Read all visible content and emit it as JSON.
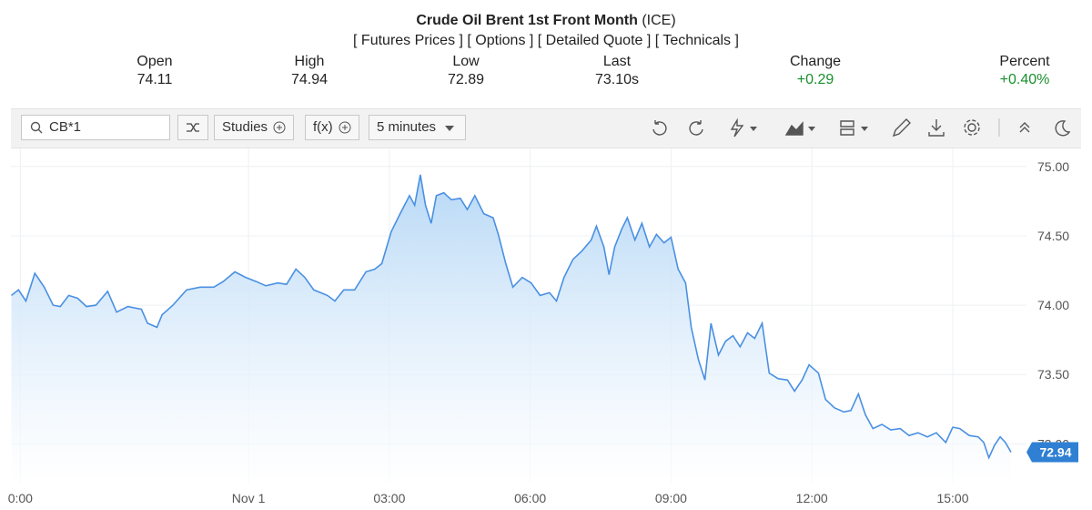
{
  "header": {
    "title": "Crude Oil Brent 1st Front Month",
    "exchange": "(ICE)",
    "links": [
      "[ Futures Prices ]",
      "[ Options ]",
      "[ Detailed Quote ]",
      "[ Technicals ]"
    ],
    "stats": [
      {
        "label": "Open",
        "value": "74.11"
      },
      {
        "label": "High",
        "value": "74.94"
      },
      {
        "label": "Low",
        "value": "72.89"
      },
      {
        "label": "Last",
        "value": "73.10s"
      },
      {
        "label": "Change",
        "value": "+0.29"
      },
      {
        "label": "Percent",
        "value": "+0.40%"
      }
    ]
  },
  "toolbar": {
    "symbol": "CB*1",
    "studies": "Studies",
    "functions": "f(x)",
    "interval": "5 minutes"
  },
  "chart_data": {
    "type": "area",
    "color": "#4a90e2",
    "grid": true,
    "x": [
      -5.05,
      -4.9,
      -4.74,
      -4.55,
      -4.35,
      -4.16,
      -4.01,
      -3.83,
      -3.64,
      -3.45,
      -3.25,
      -3.0,
      -2.81,
      -2.57,
      -2.28,
      -2.15,
      -1.95,
      -1.84,
      -1.61,
      -1.32,
      -1.03,
      -0.74,
      -0.54,
      -0.29,
      -0.06,
      0.17,
      0.37,
      0.62,
      0.81,
      1.01,
      1.2,
      1.39,
      1.68,
      1.84,
      2.03,
      2.26,
      2.5,
      2.69,
      2.84,
      3.04,
      3.23,
      3.43,
      3.54,
      3.66,
      3.77,
      3.89,
      4.0,
      4.16,
      4.32,
      4.51,
      4.66,
      4.82,
      5.01,
      5.21,
      5.32,
      5.48,
      5.63,
      5.83,
      6.02,
      6.21,
      6.41,
      6.56,
      6.72,
      6.91,
      7.1,
      7.3,
      7.41,
      7.57,
      7.68,
      7.8,
      7.95,
      8.07,
      8.23,
      8.38,
      8.54,
      8.69,
      8.85,
      9.0,
      9.15,
      9.31,
      9.43,
      9.58,
      9.72,
      9.85,
      10.01,
      10.16,
      10.32,
      10.47,
      10.63,
      10.78,
      10.94,
      11.09,
      11.28,
      11.48,
      11.63,
      11.79,
      11.94,
      12.14,
      12.29,
      12.48,
      12.68,
      12.83,
      12.99,
      13.14,
      13.3,
      13.49,
      13.68,
      13.88,
      14.07,
      14.26,
      14.46,
      14.65,
      14.85,
      15.0,
      15.15,
      15.35,
      15.54,
      15.66,
      15.77,
      15.89,
      16.01,
      16.12,
      16.24
    ],
    "values": [
      74.07,
      74.11,
      74.03,
      74.23,
      74.13,
      74.0,
      73.99,
      74.07,
      74.05,
      73.99,
      74.0,
      74.1,
      73.95,
      73.99,
      73.97,
      73.87,
      73.84,
      73.93,
      74.0,
      74.11,
      74.13,
      74.13,
      74.17,
      74.24,
      74.2,
      74.17,
      74.14,
      74.16,
      74.15,
      74.26,
      74.2,
      74.11,
      74.07,
      74.03,
      74.11,
      74.11,
      74.24,
      74.26,
      74.3,
      74.53,
      74.66,
      74.79,
      74.72,
      74.94,
      74.72,
      74.59,
      74.79,
      74.81,
      74.76,
      74.77,
      74.69,
      74.79,
      74.66,
      74.63,
      74.51,
      74.3,
      74.13,
      74.2,
      74.16,
      74.07,
      74.09,
      74.03,
      74.2,
      74.33,
      74.39,
      74.47,
      74.57,
      74.42,
      74.22,
      74.42,
      74.55,
      74.63,
      74.47,
      74.59,
      74.42,
      74.51,
      74.45,
      74.49,
      74.26,
      74.16,
      73.84,
      73.61,
      73.46,
      73.87,
      73.64,
      73.74,
      73.78,
      73.7,
      73.8,
      73.76,
      73.87,
      73.51,
      73.47,
      73.46,
      73.38,
      73.46,
      73.57,
      73.51,
      73.32,
      73.26,
      73.23,
      73.24,
      73.36,
      73.21,
      73.11,
      73.14,
      73.1,
      73.11,
      73.06,
      73.08,
      73.05,
      73.08,
      73.01,
      73.12,
      73.11,
      73.06,
      73.05,
      73.01,
      72.9,
      72.99,
      73.05,
      73.01,
      72.94
    ],
    "xlim": [
      -5.06,
      16.57
    ],
    "ylim": [
      72.72,
      75.13
    ],
    "xticks": [
      {
        "value": -4.86,
        "label": "0:00"
      },
      {
        "value": 0,
        "label": "Nov 1"
      },
      {
        "value": 3,
        "label": "03:00"
      },
      {
        "value": 6,
        "label": "06:00"
      },
      {
        "value": 9,
        "label": "09:00"
      },
      {
        "value": 12,
        "label": "12:00"
      },
      {
        "value": 15,
        "label": "15:00"
      }
    ],
    "yticks": [
      {
        "value": 73,
        "label": "73.00"
      },
      {
        "value": 73.5,
        "label": "73.50"
      },
      {
        "value": 74,
        "label": "74.00"
      },
      {
        "value": 74.5,
        "label": "74.50"
      },
      {
        "value": 75,
        "label": "75.00"
      }
    ],
    "current_price": 72.94
  }
}
